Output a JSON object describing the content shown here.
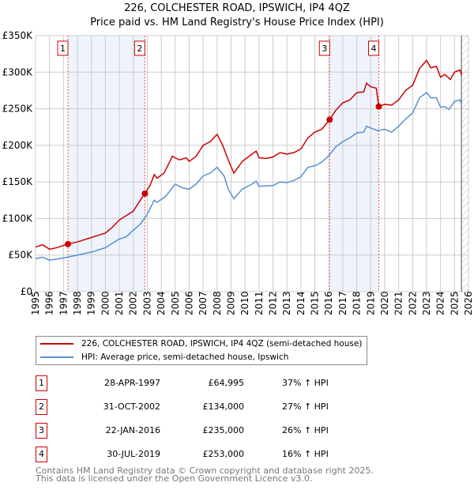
{
  "chart_data": {
    "type": "line",
    "title": "226, COLCHESTER ROAD, IPSWICH, IP4 4QZ",
    "subtitle": "Price paid vs. HM Land Registry's House Price Index (HPI)",
    "xlim": [
      1995,
      2026
    ],
    "ylim": [
      0,
      350000
    ],
    "xticks": [
      "1995",
      "1996",
      "1997",
      "1998",
      "1999",
      "2000",
      "2001",
      "2002",
      "2003",
      "2004",
      "2005",
      "2006",
      "2007",
      "2008",
      "2009",
      "2010",
      "2011",
      "2012",
      "2013",
      "2014",
      "2015",
      "2016",
      "2017",
      "2018",
      "2019",
      "2020",
      "2021",
      "2022",
      "2023",
      "2024",
      "2025",
      "2026"
    ],
    "yticks": [
      {
        "v": 0,
        "l": "£0"
      },
      {
        "v": 50000,
        "l": "£50K"
      },
      {
        "v": 100000,
        "l": "£100K"
      },
      {
        "v": 150000,
        "l": "£150K"
      },
      {
        "v": 200000,
        "l": "£200K"
      },
      {
        "v": 250000,
        "l": "£250K"
      },
      {
        "v": 300000,
        "l": "£300K"
      },
      {
        "v": 350000,
        "l": "£350K"
      }
    ],
    "grid": true,
    "series": [
      {
        "name": "226, COLCHESTER ROAD, IPSWICH, IP4 4QZ (semi-detached house)",
        "color": "#cc0000",
        "x": [
          1995,
          1995.5,
          1996,
          1996.5,
          1997.32,
          1998,
          1999,
          2000,
          2000.5,
          2001,
          2002,
          2002.5,
          2002.83,
          2003.2,
          2003.5,
          2003.7,
          2004.2,
          2004.8,
          2005.3,
          2005.8,
          2006,
          2006.5,
          2007,
          2007.5,
          2008,
          2008.4,
          2008.8,
          2009.2,
          2009.8,
          2010.5,
          2010.8,
          2011,
          2011.5,
          2012,
          2012.5,
          2013,
          2013.5,
          2014,
          2014.5,
          2015,
          2015.5,
          2016.06,
          2016.5,
          2017,
          2017.5,
          2018,
          2018.5,
          2018.7,
          2019,
          2019.4,
          2019.58,
          2020,
          2020.5,
          2021,
          2021.5,
          2022,
          2022.5,
          2023,
          2023.3,
          2023.7,
          2024,
          2024.3,
          2024.7,
          2025,
          2025.4,
          2025.5
        ],
        "y": [
          61,
          64,
          58,
          60,
          65,
          68,
          74,
          80,
          88,
          98,
          110,
          125,
          134,
          145,
          160,
          155,
          162,
          185,
          180,
          183,
          178,
          185,
          200,
          205,
          215,
          200,
          180,
          162,
          178,
          188,
          192,
          183,
          182,
          184,
          190,
          188,
          190,
          195,
          210,
          218,
          222,
          235,
          248,
          258,
          262,
          272,
          273,
          285,
          280,
          278,
          253,
          256,
          255,
          262,
          275,
          282,
          305,
          316,
          306,
          308,
          293,
          297,
          290,
          300,
          303,
          296
        ]
      },
      {
        "name": "HPI: Average price, semi-detached house, Ipswich",
        "color": "#5b8fd0",
        "x": [
          1995,
          1995.5,
          1996,
          1997,
          1998,
          1999,
          2000,
          2000.5,
          2001,
          2001.5,
          2002,
          2002.5,
          2003,
          2003.5,
          2003.7,
          2004.3,
          2005,
          2005.5,
          2006,
          2006.5,
          2007,
          2007.5,
          2008,
          2008.5,
          2008.8,
          2009.2,
          2009.8,
          2010.5,
          2010.8,
          2011,
          2012,
          2012.5,
          2013,
          2013.5,
          2014,
          2014.5,
          2015,
          2015.5,
          2016,
          2016.5,
          2017,
          2017.5,
          2018,
          2018.5,
          2018.7,
          2019.5,
          2020,
          2020.5,
          2021,
          2021.5,
          2022,
          2022.5,
          2023,
          2023.3,
          2023.7,
          2024,
          2024.3,
          2024.6,
          2025,
          2025.4,
          2025.5
        ],
        "y": [
          45,
          47,
          43,
          46,
          50,
          54,
          60,
          66,
          72,
          75,
          84,
          92,
          106,
          125,
          122,
          130,
          147,
          142,
          140,
          147,
          158,
          162,
          170,
          158,
          140,
          127,
          140,
          147,
          151,
          144,
          145,
          150,
          149,
          152,
          157,
          170,
          172,
          177,
          186,
          198,
          205,
          210,
          217,
          218,
          226,
          220,
          222,
          218,
          226,
          236,
          244,
          265,
          272,
          265,
          265,
          252,
          253,
          249,
          260,
          262,
          256
        ]
      }
    ],
    "yunit": "thousands GBP",
    "sales": [
      {
        "n": "1",
        "x": 1997.32,
        "date": "28-APR-1997",
        "price": "£64,995",
        "hpi": "37% ↑ HPI",
        "v": 64995
      },
      {
        "n": "2",
        "x": 2002.83,
        "date": "31-OCT-2002",
        "price": "£134,000",
        "hpi": "27% ↑ HPI",
        "v": 134000
      },
      {
        "n": "3",
        "x": 2016.06,
        "date": "22-JAN-2016",
        "price": "£235,000",
        "hpi": "26% ↑ HPI",
        "v": 235000
      },
      {
        "n": "4",
        "x": 2019.58,
        "date": "30-JUL-2019",
        "price": "£253,000",
        "hpi": "16% ↑ HPI",
        "v": 253000
      }
    ],
    "forecast_start": 2025.5
  },
  "footer": {
    "line1": "Contains HM Land Registry data © Crown copyright and database right 2025.",
    "line2": "This data is licensed under the Open Government Licence v3.0."
  }
}
